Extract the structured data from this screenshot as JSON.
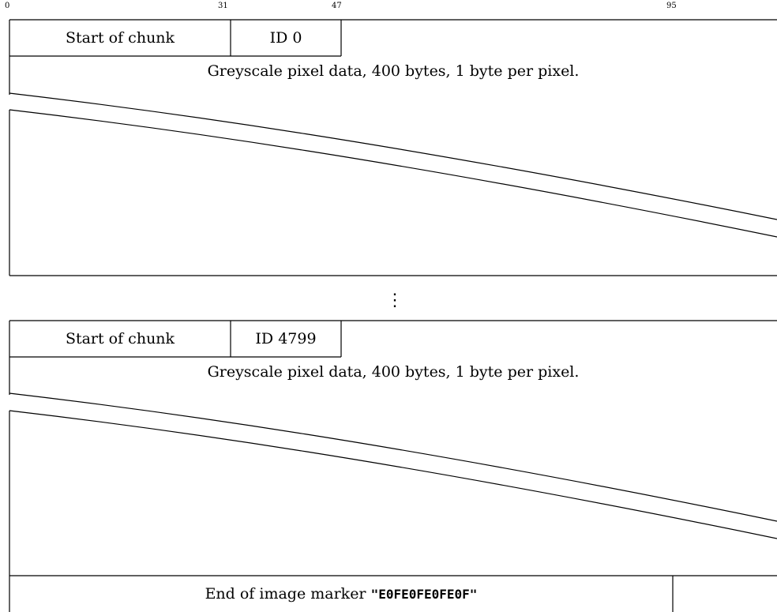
{
  "bit_ruler": {
    "labels": [
      "0",
      "31",
      "47",
      "95"
    ]
  },
  "chunk_first": {
    "start_label": "Start of chunk",
    "id_label": "ID 0",
    "data_label": "Greyscale pixel data, 400 bytes, 1 byte per pixel."
  },
  "ellipsis": "⋮",
  "chunk_last": {
    "start_label": "Start of chunk",
    "id_label": "ID 4799",
    "data_label": "Greyscale pixel data, 400 bytes, 1 byte per pixel."
  },
  "end_marker": {
    "label_prefix": "End of image marker ",
    "marker_value": "\"E0FE0FE0FE0F\""
  }
}
